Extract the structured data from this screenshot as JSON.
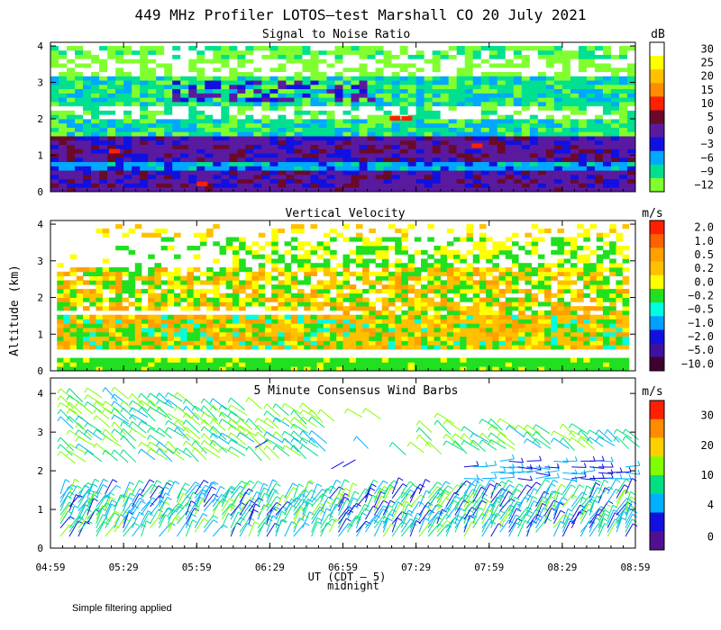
{
  "title": "449 MHz Profiler LOTOS—test Marshall CO 20 July 2021",
  "y_axis_label": "Altitude (km)",
  "x_axis_label": "UT (CDT — 5)",
  "x_axis_sublabel": "midnight",
  "footnote": "Simple filtering applied",
  "chart_data": [
    {
      "type": "heatmap",
      "title": "Signal to Noise Ratio",
      "unit": "dB",
      "x_ticks": [
        "04:59",
        "05:29",
        "05:59",
        "06:29",
        "06:59",
        "07:29",
        "07:59",
        "08:29",
        "08:59"
      ],
      "y_ticks": [
        "0",
        "1",
        "2",
        "3",
        "4"
      ],
      "ylim": [
        0,
        4.1
      ],
      "xlim": [
        "04:59",
        "08:59"
      ],
      "colorbar": {
        "labels": [
          "30",
          "25",
          "20",
          "15",
          "10",
          "5",
          "0",
          "−3",
          "−6",
          "−9",
          "−12"
        ],
        "colors": [
          "#ffffff",
          "#ffff00",
          "#ffc000",
          "#ff8c00",
          "#ff2000",
          "#6a0a2a",
          "#5a1aa0",
          "#1010e0",
          "#00a8ff",
          "#00e090",
          "#80ff30"
        ]
      }
    },
    {
      "type": "heatmap",
      "title": "Vertical Velocity",
      "unit": "m/s",
      "x_ticks": [
        "04:59",
        "05:29",
        "05:59",
        "06:29",
        "06:59",
        "07:29",
        "07:59",
        "08:29",
        "08:59"
      ],
      "y_ticks": [
        "0",
        "1",
        "2",
        "3",
        "4"
      ],
      "ylim": [
        0,
        4.1
      ],
      "xlim": [
        "04:59",
        "08:59"
      ],
      "colorbar": {
        "labels": [
          "2.0",
          "1.0",
          "0.5",
          "0.2",
          "0.0",
          "−0.2",
          "−0.5",
          "−1.0",
          "−2.0",
          "−5.0",
          "−10.0"
        ],
        "colors": [
          "#ff2000",
          "#ff6000",
          "#ffa000",
          "#ffc000",
          "#ffff00",
          "#20e020",
          "#00ffe0",
          "#00a0ff",
          "#1010e0",
          "#4010a0",
          "#400030"
        ]
      }
    },
    {
      "type": "scatter",
      "title": "5 Minute Consensus Wind Barbs",
      "unit": "m/s",
      "x_ticks": [
        "04:59",
        "05:29",
        "05:59",
        "06:29",
        "06:59",
        "07:29",
        "07:59",
        "08:29",
        "08:59"
      ],
      "y_ticks": [
        "0",
        "1",
        "2",
        "3",
        "4"
      ],
      "ylim": [
        0,
        4.4
      ],
      "xlim": [
        "04:59",
        "08:59"
      ],
      "colorbar": {
        "labels": [
          "30",
          "20",
          "10",
          "4",
          "0"
        ],
        "colors": [
          "#ff2000",
          "#ff8c00",
          "#ffd000",
          "#80ff00",
          "#00e080",
          "#00b0ff",
          "#1010e0",
          "#501090"
        ]
      }
    }
  ]
}
